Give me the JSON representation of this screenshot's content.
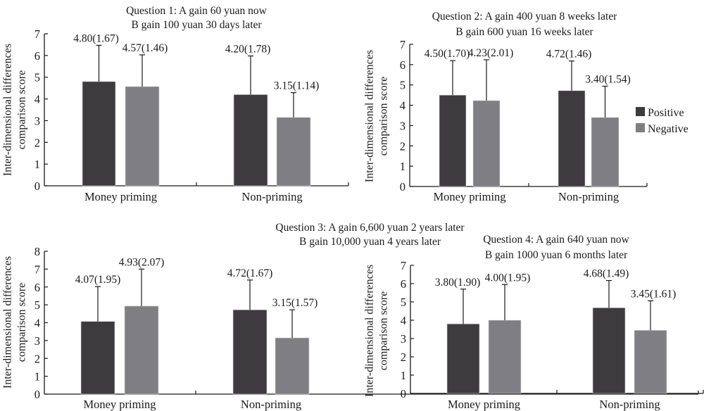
{
  "chart_data": [
    {
      "type": "bar",
      "title": [
        "Question 1: A gain 60 yuan now",
        "B gain 100 yuan 30 days later"
      ],
      "ylabel": [
        "Inter-dimensional differences",
        "comparison score"
      ],
      "xlabel": "",
      "categories": [
        "Money priming",
        "Non-priming"
      ],
      "ylim": [
        0,
        7
      ],
      "yticks": [
        0,
        1,
        2,
        3,
        4,
        5,
        6,
        7
      ],
      "series": [
        {
          "name": "Positive",
          "values": [
            4.8,
            4.2
          ],
          "sd": [
            1.67,
            1.78
          ],
          "labels": [
            "4.80(1.67)",
            "4.20(1.78)"
          ]
        },
        {
          "name": "Negative",
          "values": [
            4.57,
            3.15
          ],
          "sd": [
            1.46,
            1.14
          ],
          "labels": [
            "4.57(1.46)",
            "3.15(1.14)"
          ]
        }
      ],
      "legend": false
    },
    {
      "type": "bar",
      "title": [
        "Question 2: A gain 400 yuan 8 weeks later",
        "B  gain 600 yuan 16 weeks later"
      ],
      "ylabel": [
        "Inter-dimensional differences",
        "comparison score"
      ],
      "xlabel": "",
      "categories": [
        "Money priming",
        "Non-priming"
      ],
      "ylim": [
        0,
        7
      ],
      "yticks": [
        0,
        1,
        2,
        3,
        4,
        5,
        6,
        7
      ],
      "series": [
        {
          "name": "Positive",
          "values": [
            4.5,
            4.72
          ],
          "sd": [
            1.7,
            1.46
          ],
          "labels": [
            "4.50(1.70)",
            "4.72(1.46)"
          ]
        },
        {
          "name": "Negative",
          "values": [
            4.23,
            3.4
          ],
          "sd": [
            2.01,
            1.54
          ],
          "labels": [
            "4.23(2.01)",
            "3.40(1.54)"
          ]
        }
      ],
      "legend": true,
      "legend_position": "right"
    },
    {
      "type": "bar",
      "title": [
        "Question 3: A gain 6,600 yuan 2 years later",
        "B gain 10,000 yuan 4 years later"
      ],
      "ylabel": [
        "Inter-dimensional differences",
        "comparison score"
      ],
      "xlabel": "",
      "categories": [
        "Money priming",
        "Non-priming"
      ],
      "ylim": [
        0,
        8
      ],
      "yticks": [
        0,
        1,
        2,
        3,
        4,
        5,
        6,
        7,
        8
      ],
      "series": [
        {
          "name": "Positive",
          "values": [
            4.07,
            4.72
          ],
          "sd": [
            1.95,
            1.67
          ],
          "labels": [
            "4.07(1.95)",
            "4.72(1.67)"
          ]
        },
        {
          "name": "Negative",
          "values": [
            4.93,
            3.15
          ],
          "sd": [
            2.07,
            1.57
          ],
          "labels": [
            "4.93(2.07)",
            "3.15(1.57)"
          ]
        }
      ],
      "legend": false
    },
    {
      "type": "bar",
      "title": [
        "Question 4: A gain 640 yuan now",
        "B gain 1000 yuan 6 months later"
      ],
      "ylabel": [
        "Inter-dimensional differences",
        "comparison score"
      ],
      "xlabel": "",
      "categories": [
        "Money priming",
        "Non-priming"
      ],
      "ylim": [
        0,
        7
      ],
      "yticks": [
        0,
        1,
        2,
        3,
        4,
        5,
        6,
        7
      ],
      "series": [
        {
          "name": "Positive",
          "values": [
            3.8,
            4.68
          ],
          "sd": [
            1.9,
            1.49
          ],
          "labels": [
            "3.80(1.90)",
            "4.68(1.49)"
          ]
        },
        {
          "name": "Negative",
          "values": [
            4.0,
            3.45
          ],
          "sd": [
            1.95,
            1.61
          ],
          "labels": [
            "4.00(1.95)",
            "3.45(1.61)"
          ]
        }
      ],
      "legend": false
    }
  ],
  "legend": {
    "items": [
      {
        "label": "Positive",
        "color": "#3d3b3e"
      },
      {
        "label": "Negative",
        "color": "#7f7e82"
      }
    ]
  },
  "colors": {
    "positive": "#3d3b3e",
    "negative": "#7f7e82",
    "axis": "#1a1a1a"
  }
}
